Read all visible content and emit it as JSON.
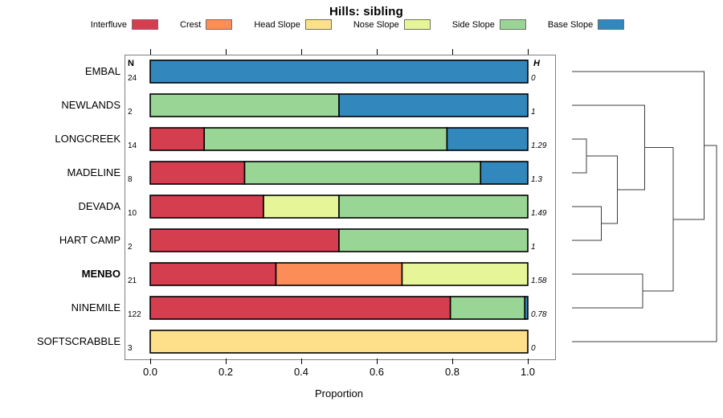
{
  "title": "Hills: sibling",
  "legend": {
    "items": [
      {
        "label": "Interfluve",
        "color": "#D53E4F"
      },
      {
        "label": "Crest",
        "color": "#FC8D59"
      },
      {
        "label": "Head Slope",
        "color": "#FEE08B"
      },
      {
        "label": "Nose Slope",
        "color": "#E6F598"
      },
      {
        "label": "Side Slope",
        "color": "#99D594"
      },
      {
        "label": "Base Slope",
        "color": "#3288BD"
      }
    ]
  },
  "columns": {
    "n_header": "N",
    "h_header": "H"
  },
  "axis": {
    "xlabel": "Proportion",
    "ticks": [
      "0.0",
      "0.2",
      "0.4",
      "0.6",
      "0.8",
      "1.0"
    ]
  },
  "chart_data": {
    "type": "bar",
    "stacked": true,
    "orientation": "horizontal",
    "title": "Hills: sibling",
    "xlabel": "Proportion",
    "xlim": [
      0,
      1
    ],
    "grid": false,
    "legend_position": "top",
    "categories": [
      "EMBAL",
      "NEWLANDS",
      "LONGCREEK",
      "MADELINE",
      "DEVADA",
      "HART CAMP",
      "MENBO",
      "NINEMILE",
      "SOFTSCRABBLE"
    ],
    "bold_category": "MENBO",
    "n_values": [
      24,
      2,
      14,
      8,
      10,
      2,
      21,
      122,
      3
    ],
    "h_values": [
      "0",
      "1",
      "1.29",
      "1.3",
      "1.49",
      "1",
      "1.58",
      "0.78",
      "0"
    ],
    "series": [
      {
        "name": "Interfluve",
        "color": "#D53E4F",
        "values": [
          0,
          0,
          0.143,
          0.25,
          0.3,
          0.5,
          0.333,
          0.795,
          0
        ]
      },
      {
        "name": "Crest",
        "color": "#FC8D59",
        "values": [
          0,
          0,
          0,
          0,
          0,
          0,
          0.334,
          0,
          0
        ]
      },
      {
        "name": "Head Slope",
        "color": "#FEE08B",
        "values": [
          0,
          0,
          0,
          0,
          0,
          0,
          0,
          0,
          1
        ]
      },
      {
        "name": "Nose Slope",
        "color": "#E6F598",
        "values": [
          0,
          0,
          0,
          0,
          0.2,
          0,
          0.333,
          0,
          0
        ]
      },
      {
        "name": "Side Slope",
        "color": "#99D594",
        "values": [
          0,
          0.5,
          0.643,
          0.625,
          0.5,
          0.5,
          0,
          0.197,
          0
        ]
      },
      {
        "name": "Base Slope",
        "color": "#3288BD",
        "values": [
          1,
          0.5,
          0.214,
          0.125,
          0,
          0,
          0,
          0.008,
          0
        ]
      }
    ],
    "dendrogram": {
      "merges": [
        {
          "a": "L2",
          "b": "L3",
          "h": 0.101
        },
        {
          "a": "L4",
          "b": "L5",
          "h": 0.203
        },
        {
          "a": "M0",
          "b": "M1",
          "h": 0.313
        },
        {
          "a": "L6",
          "b": "L7",
          "h": 0.489
        },
        {
          "a": "L1",
          "b": "M2",
          "h": 0.504
        },
        {
          "a": "M4",
          "b": "M3",
          "h": 0.701
        },
        {
          "a": "L0",
          "b": "M5",
          "h": 0.913
        },
        {
          "a": "M6",
          "b": "L8",
          "h": 1.0
        }
      ]
    }
  }
}
